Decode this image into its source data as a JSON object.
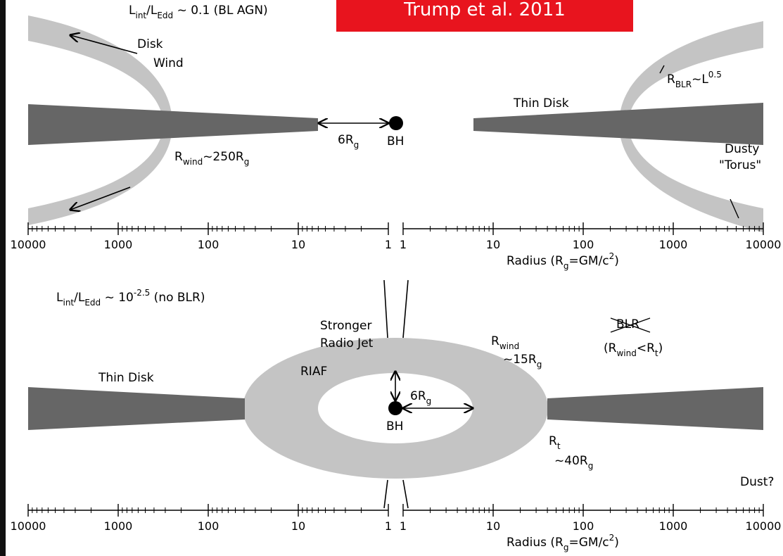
{
  "badge": "Trump et al. 2011",
  "top": {
    "title": [
      "L",
      "int",
      "/L",
      "Edd",
      " ~ 0.1 (BL AGN)"
    ],
    "disk": "Disk",
    "wind": "Wind",
    "r_wind": [
      "R",
      "wind",
      "~250R",
      "g"
    ],
    "six_rg": [
      "6R",
      "g"
    ],
    "bh": "BH",
    "thin_disk": "Thin Disk",
    "r_blr": [
      "R",
      "BLR",
      "~L",
      "0.5"
    ],
    "dusty": "Dusty",
    "torus": "\"Torus\"",
    "axis": {
      "left_ticks": [
        10000,
        1000,
        100,
        10,
        1
      ],
      "right_ticks": [
        1,
        10,
        100,
        1000,
        10000
      ],
      "label": [
        "Radius  (R",
        "g",
        "=GM/c",
        "2",
        ")"
      ]
    }
  },
  "bottom": {
    "title": [
      "L",
      "int",
      "/L",
      "Edd",
      " ~ 10",
      "-2.5",
      " (no BLR)"
    ],
    "stronger": "Stronger",
    "radio_jet": "Radio Jet",
    "thin_disk": "Thin Disk",
    "riaf": "RIAF",
    "six_rg": [
      "6R",
      "g"
    ],
    "bh": "BH",
    "r_wind": [
      "R",
      "wind"
    ],
    "r_wind_value": [
      "~15R",
      "g"
    ],
    "blr": "BLR",
    "blr_condition": [
      "(R",
      "wind",
      "<R",
      "t",
      ")"
    ],
    "r_t": [
      "R",
      "t"
    ],
    "r_t_value": [
      "~40R",
      "g"
    ],
    "dust": "Dust?",
    "axis": {
      "left_ticks": [
        10000,
        1000,
        100,
        10,
        1
      ],
      "right_ticks": [
        1,
        10,
        100,
        1000,
        10000
      ],
      "label": [
        "Radius  (R",
        "g",
        "=GM/c",
        "2",
        ")"
      ]
    }
  }
}
